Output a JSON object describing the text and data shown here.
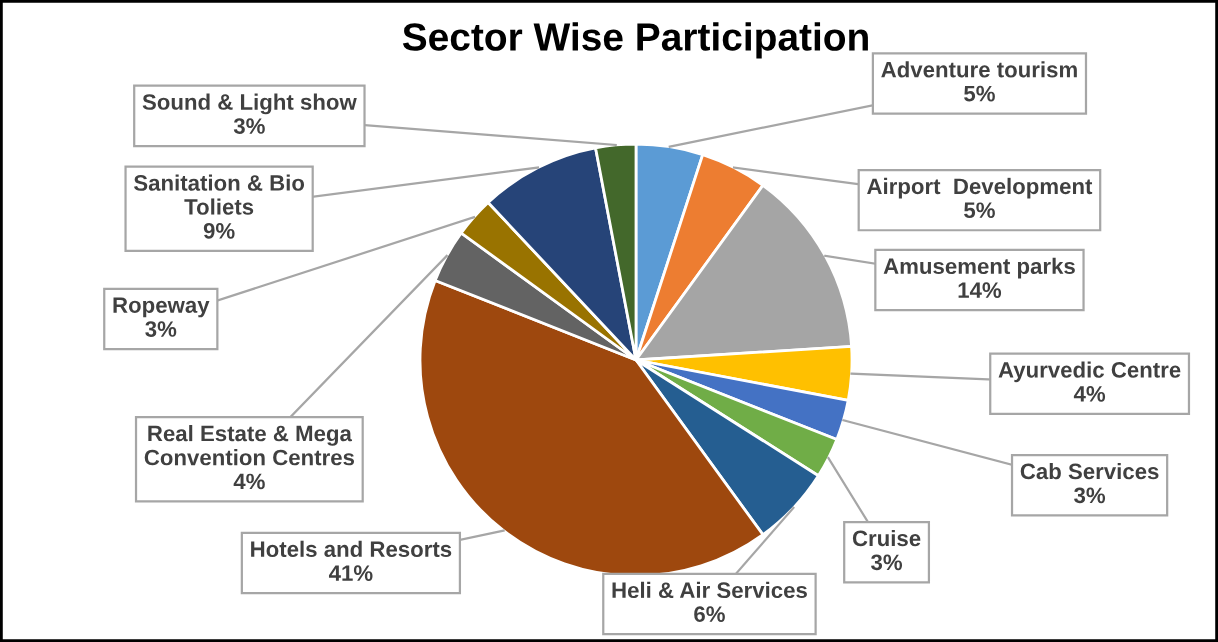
{
  "chart_data": {
    "type": "pie",
    "title": "Sector Wise Participation",
    "categories": [
      "Adventure tourism",
      "Airport  Development",
      "Amusement parks",
      "Ayurvedic Centre",
      "Cab Services",
      "Cruise",
      "Heli & Air Services",
      "Hotels and Resorts",
      "Real Estate & Mega\nConvention Centres",
      "Ropeway",
      "Sanitation & Bio\nToliets",
      "Sound & Light show"
    ],
    "values": [
      5,
      5,
      14,
      4,
      3,
      3,
      6,
      41,
      4,
      3,
      9,
      3
    ],
    "value_labels": [
      "5%",
      "5%",
      "14%",
      "4%",
      "3%",
      "3%",
      "6%",
      "41%",
      "4%",
      "3%",
      "9%",
      "3%"
    ],
    "colors": [
      "#5b9bd5",
      "#ed7d31",
      "#a5a5a5",
      "#ffc000",
      "#4472c4",
      "#70ad47",
      "#255e91",
      "#9e480e",
      "#636363",
      "#997300",
      "#264478",
      "#43682b"
    ],
    "legend": false
  }
}
